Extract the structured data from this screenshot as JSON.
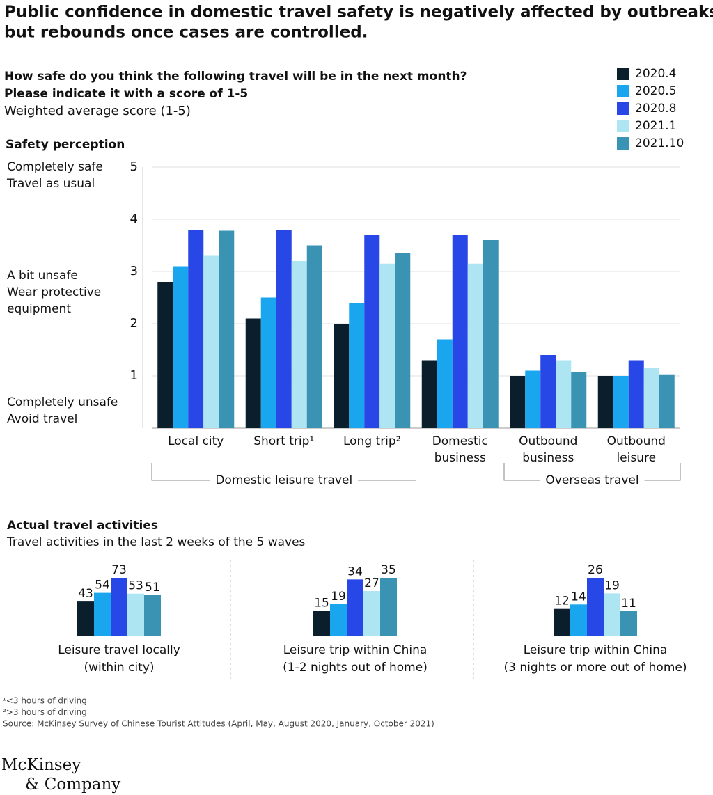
{
  "title": [
    "Public confidence in domestic travel safety is negatively affected by outbreaks,",
    "but rebounds once cases are controlled."
  ],
  "chart_data": [
    {
      "type": "bar",
      "title": [
        "How safe do you think the following travel will be in the next month?",
        "Please indicate it with a score of 1-5"
      ],
      "subtitle": "Weighted average score (1-5)",
      "y_label": "Safety perception",
      "y_annotations": [
        [
          "Completely safe",
          "Travel as usual"
        ],
        [
          "A bit unsafe",
          "Wear protective",
          "equipment"
        ],
        [
          "Completely unsafe",
          "Avoid travel"
        ]
      ],
      "categories": [
        "Local city",
        "Short trip¹",
        "Long trip²",
        "Domestic business",
        "Outbound business",
        "Outbound leisure"
      ],
      "groups": [
        "Domestic leisure travel",
        "Overseas travel"
      ],
      "series": [
        {
          "name": "2020.4",
          "color": "#0b1e2c",
          "values": [
            2.8,
            2.1,
            2.0,
            1.3,
            1.0,
            1.0
          ]
        },
        {
          "name": "2020.5",
          "color": "#1aa6ee",
          "values": [
            3.1,
            2.5,
            2.4,
            1.7,
            1.1,
            1.0
          ]
        },
        {
          "name": "2020.8",
          "color": "#2747e6",
          "values": [
            3.8,
            3.8,
            3.7,
            3.7,
            1.4,
            1.3
          ]
        },
        {
          "name": "2021.1",
          "color": "#aee5f3",
          "values": [
            3.3,
            3.2,
            3.15,
            3.15,
            1.3,
            1.15
          ]
        },
        {
          "name": "2021.10",
          "color": "#3a93b2",
          "values": [
            3.78,
            3.5,
            3.35,
            3.6,
            1.07,
            1.03
          ]
        }
      ],
      "ylim": [
        0,
        5
      ],
      "yticks": [
        1,
        2,
        3,
        4,
        5
      ],
      "grid": true,
      "legend": "top-right"
    },
    {
      "type": "bar",
      "title": [
        "Leisure travel locally",
        "(within city)"
      ],
      "values": [
        43,
        54,
        73,
        53,
        51
      ],
      "colors": [
        "#0b1e2c",
        "#1aa6ee",
        "#2747e6",
        "#aee5f3",
        "#3a93b2"
      ],
      "ylim": [
        0,
        73
      ]
    },
    {
      "type": "bar",
      "title": [
        "Leisure trip within China",
        "(1-2 nights out of home)"
      ],
      "values": [
        15,
        19,
        34,
        27,
        35
      ],
      "colors": [
        "#0b1e2c",
        "#1aa6ee",
        "#2747e6",
        "#aee5f3",
        "#3a93b2"
      ],
      "ylim": [
        0,
        35
      ]
    },
    {
      "type": "bar",
      "title": [
        "Leisure trip within China",
        "(3 nights or more out of home)"
      ],
      "values": [
        12,
        14,
        26,
        19,
        11
      ],
      "colors": [
        "#0b1e2c",
        "#1aa6ee",
        "#2747e6",
        "#aee5f3",
        "#3a93b2"
      ],
      "ylim": [
        0,
        26
      ]
    }
  ],
  "section": {
    "title": "Actual travel activities",
    "subtitle": "Travel activities in the last 2 weeks of the 5 waves"
  },
  "footnotes": [
    "¹<3 hours of driving",
    "²>3 hours of driving",
    "Source: McKinsey Survey of Chinese Tourist Attitudes (April, May, August 2020, January, October 2021)"
  ],
  "logo": [
    "McKinsey",
    "& Company"
  ]
}
